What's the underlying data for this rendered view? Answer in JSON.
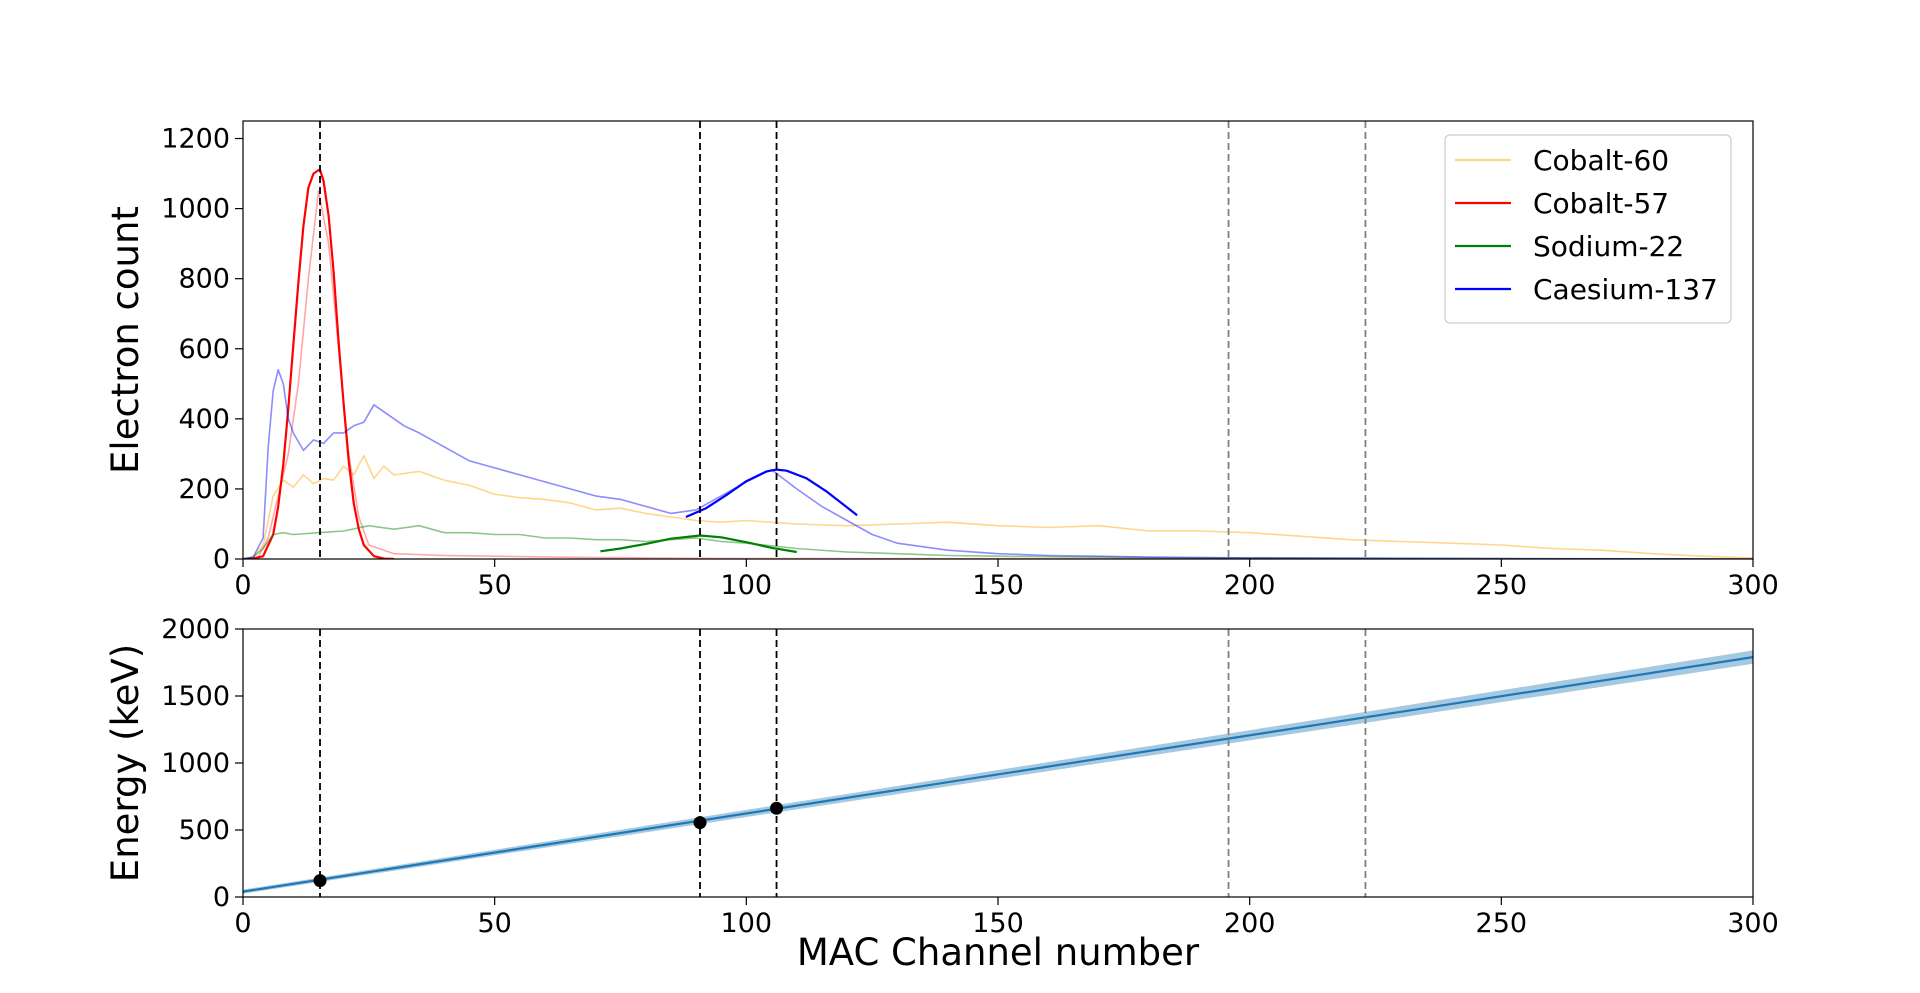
{
  "chart_data": [
    {
      "type": "line",
      "title": "",
      "xlabel": "",
      "ylabel": "Electron count",
      "xlim": [
        0,
        300
      ],
      "ylim": [
        0,
        1250
      ],
      "xticks": [
        "0",
        "50",
        "100",
        "150",
        "200",
        "250",
        "300"
      ],
      "yticks": [
        "0",
        "200",
        "400",
        "600",
        "800",
        "1000",
        "1200"
      ],
      "grid": false,
      "legend": "top-right",
      "vlines_black": [
        15.3,
        90.8,
        106.0
      ],
      "vlines_gray": [
        195.8,
        223.0
      ],
      "series": [
        {
          "name": "Cobalt-60",
          "color": "#ffa500",
          "opacity": 0.45,
          "x": [
            0,
            2,
            4,
            6,
            8,
            10,
            12,
            14,
            16,
            18,
            20,
            22,
            24,
            26,
            28,
            30,
            35,
            40,
            45,
            50,
            55,
            60,
            65,
            70,
            75,
            80,
            85,
            90,
            95,
            100,
            110,
            120,
            130,
            140,
            150,
            160,
            170,
            180,
            190,
            200,
            210,
            220,
            230,
            240,
            250,
            260,
            270,
            280,
            290,
            300
          ],
          "y": [
            0,
            5,
            40,
            180,
            225,
            205,
            240,
            215,
            230,
            225,
            265,
            240,
            295,
            230,
            265,
            240,
            250,
            225,
            210,
            185,
            175,
            170,
            160,
            140,
            145,
            130,
            120,
            110,
            105,
            110,
            100,
            95,
            100,
            105,
            95,
            90,
            95,
            80,
            80,
            75,
            65,
            55,
            50,
            45,
            40,
            30,
            25,
            15,
            8,
            3
          ]
        },
        {
          "name": "",
          "color": "#ff0000",
          "opacity": 0.35,
          "x": [
            0,
            3,
            5,
            7,
            9,
            11,
            13,
            15,
            17,
            19,
            21,
            23,
            25,
            30,
            40,
            50,
            60,
            70,
            80,
            90,
            100,
            300
          ],
          "y": [
            0,
            5,
            60,
            180,
            300,
            500,
            800,
            1050,
            900,
            600,
            300,
            120,
            40,
            15,
            10,
            8,
            6,
            4,
            3,
            2,
            1,
            0
          ]
        },
        {
          "name": "Cobalt-57",
          "color": "#ff0000",
          "opacity": 1,
          "x": [
            0,
            2,
            4,
            6,
            7,
            8,
            9,
            10,
            11,
            12,
            13,
            14,
            15,
            15.3,
            16,
            17,
            18,
            19,
            20,
            21,
            22,
            23,
            24,
            26,
            28,
            30
          ],
          "y": [
            0,
            1,
            8,
            70,
            150,
            270,
            430,
            610,
            790,
            950,
            1060,
            1100,
            1110,
            1110,
            1080,
            980,
            820,
            620,
            440,
            280,
            160,
            85,
            40,
            8,
            1,
            0
          ]
        },
        {
          "name": "",
          "color": "#008000",
          "opacity": 0.45,
          "x": [
            0,
            2,
            4,
            6,
            8,
            10,
            15,
            20,
            25,
            30,
            35,
            40,
            45,
            50,
            55,
            60,
            65,
            70,
            75,
            80,
            85,
            90,
            95,
            100,
            110,
            120,
            130,
            140,
            150,
            170,
            200,
            250,
            300
          ],
          "y": [
            0,
            5,
            30,
            70,
            75,
            70,
            75,
            80,
            95,
            85,
            95,
            75,
            75,
            70,
            70,
            60,
            60,
            55,
            55,
            50,
            55,
            60,
            50,
            45,
            30,
            20,
            15,
            10,
            8,
            5,
            3,
            1,
            0
          ]
        },
        {
          "name": "Sodium-22",
          "color": "#008000",
          "opacity": 1,
          "x": [
            71,
            75,
            80,
            85,
            90.8,
            95,
            100,
            105,
            110
          ],
          "y": [
            22,
            30,
            43,
            58,
            67,
            62,
            48,
            32,
            20
          ]
        },
        {
          "name": "",
          "color": "#0000ff",
          "opacity": 0.45,
          "x": [
            0,
            2,
            4,
            5,
            6,
            7,
            8,
            9,
            10,
            12,
            14,
            16,
            18,
            20,
            22,
            24,
            26,
            28,
            30,
            32,
            35,
            40,
            45,
            50,
            55,
            60,
            65,
            70,
            75,
            80,
            85,
            90,
            95,
            100,
            105,
            110,
            115,
            120,
            125,
            130,
            140,
            150,
            160,
            170,
            180,
            200,
            250,
            300
          ],
          "y": [
            0,
            5,
            60,
            320,
            480,
            540,
            500,
            400,
            360,
            310,
            340,
            330,
            360,
            360,
            380,
            390,
            440,
            420,
            400,
            380,
            360,
            320,
            280,
            260,
            240,
            220,
            200,
            180,
            170,
            150,
            130,
            140,
            180,
            220,
            255,
            200,
            150,
            110,
            70,
            45,
            25,
            15,
            10,
            8,
            5,
            3,
            1,
            0
          ]
        },
        {
          "name": "Caesium-137",
          "color": "#0000ff",
          "opacity": 1,
          "x": [
            88,
            92,
            96,
            100,
            104,
            106,
            108,
            112,
            116,
            122
          ],
          "y": [
            120,
            145,
            182,
            222,
            250,
            255,
            252,
            230,
            192,
            125
          ]
        }
      ]
    },
    {
      "type": "line",
      "title": "",
      "xlabel": "MAC Channel number",
      "ylabel": "Energy (keV)",
      "xlim": [
        0,
        300
      ],
      "ylim": [
        0,
        2000
      ],
      "xticks": [
        "0",
        "50",
        "100",
        "150",
        "200",
        "250",
        "300"
      ],
      "yticks": [
        "0",
        "500",
        "1000",
        "1500",
        "2000"
      ],
      "grid": false,
      "vlines_black": [
        15.3,
        90.8,
        106.0
      ],
      "vlines_gray": [
        195.8,
        223.0
      ],
      "fit": {
        "color": "#1f77b4",
        "band_color": "#1f77b4",
        "x": [
          0,
          300
        ],
        "y": [
          40,
          1790
        ],
        "band_halfwidth_start": 15,
        "band_halfwidth_end": 50
      },
      "points": {
        "color": "#000000",
        "x": [
          15.3,
          90.8,
          106.0
        ],
        "y": [
          122,
          555,
          662
        ]
      }
    }
  ]
}
